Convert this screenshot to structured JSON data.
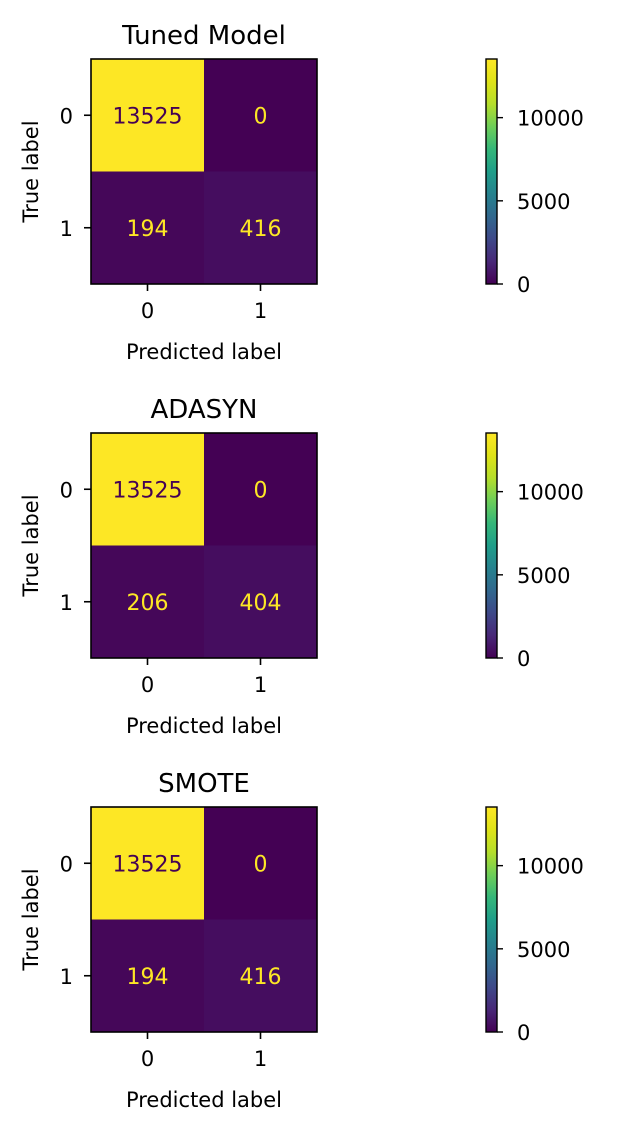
{
  "chart_data": [
    {
      "type": "heatmap",
      "title": "Tuned Model",
      "xlabel": "Predicted label",
      "ylabel": "True label",
      "x_ticks": [
        "0",
        "1"
      ],
      "y_ticks": [
        "0",
        "1"
      ],
      "matrix": [
        [
          13525,
          0
        ],
        [
          194,
          416
        ]
      ],
      "colormap": "viridis",
      "colorbar": {
        "range": [
          0,
          13525
        ],
        "ticks": [
          0,
          5000,
          10000
        ]
      }
    },
    {
      "type": "heatmap",
      "title": "ADASYN",
      "xlabel": "Predicted label",
      "ylabel": "True label",
      "x_ticks": [
        "0",
        "1"
      ],
      "y_ticks": [
        "0",
        "1"
      ],
      "matrix": [
        [
          13525,
          0
        ],
        [
          206,
          404
        ]
      ],
      "colormap": "viridis",
      "colorbar": {
        "range": [
          0,
          13525
        ],
        "ticks": [
          0,
          5000,
          10000
        ]
      }
    },
    {
      "type": "heatmap",
      "title": "SMOTE",
      "xlabel": "Predicted label",
      "ylabel": "True label",
      "x_ticks": [
        "0",
        "1"
      ],
      "y_ticks": [
        "0",
        "1"
      ],
      "matrix": [
        [
          13525,
          0
        ],
        [
          194,
          416
        ]
      ],
      "colormap": "viridis",
      "colorbar": {
        "range": [
          0,
          13525
        ],
        "ticks": [
          0,
          5000,
          10000
        ]
      }
    }
  ],
  "colors": {
    "text_on_dark": "#fde725",
    "text_on_light": "#440154",
    "axis": "#000000"
  }
}
